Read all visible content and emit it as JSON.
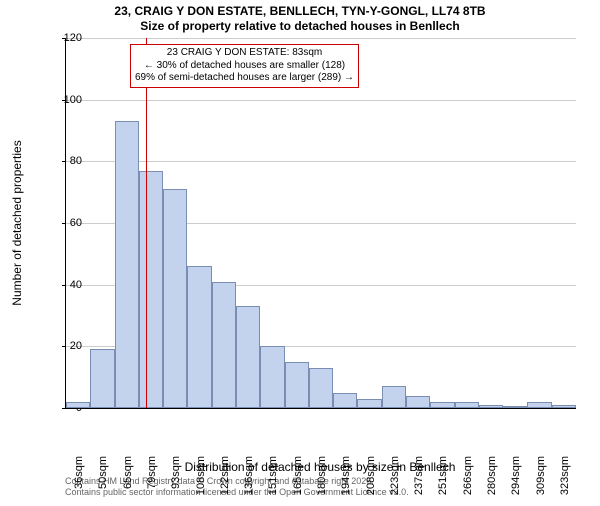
{
  "title_line1": "23, CRAIG Y DON ESTATE, BENLLECH, TYN-Y-GONGL, LL74 8TB",
  "title_line2": "Size of property relative to detached houses in Benllech",
  "y_label": "Number of detached properties",
  "x_label": "Distribution of detached houses by size in Benllech",
  "footer_line1": "Contains HM Land Registry data © Crown copyright and database right 2025.",
  "footer_line2": "Contains public sector information licensed under the Open Government Licence v3.0.",
  "annot_line1": "23 CRAIG Y DON ESTATE: 83sqm",
  "annot_line2": "← 30% of detached houses are smaller (128)",
  "annot_line3": "69% of semi-detached houses are larger (289) →",
  "chart": {
    "type": "histogram",
    "ylim": [
      0,
      120
    ],
    "ytick_step": 20,
    "yticks": [
      0,
      20,
      40,
      60,
      80,
      100,
      120
    ],
    "categories": [
      "36sqm",
      "50sqm",
      "65sqm",
      "79sqm",
      "93sqm",
      "108sqm",
      "122sqm",
      "136sqm",
      "151sqm",
      "165sqm",
      "180sqm",
      "194sqm",
      "208sqm",
      "223sqm",
      "237sqm",
      "251sqm",
      "266sqm",
      "280sqm",
      "294sqm",
      "309sqm",
      "323sqm"
    ],
    "values": [
      2,
      19,
      93,
      77,
      71,
      46,
      41,
      33,
      20,
      15,
      13,
      5,
      3,
      7,
      4,
      2,
      2,
      1,
      0,
      2,
      1
    ],
    "bar_fill": "#c4d3ed",
    "bar_stroke": "#7a8db3",
    "grid_color": "#cccccc",
    "background": "#ffffff",
    "ref_line_index": 3.3,
    "ref_line_color": "#cc0000",
    "annot_border": "#cc0000",
    "title_fontsize": 12,
    "label_fontsize": 12,
    "tick_fontsize": 11,
    "annot_fontsize": 10
  }
}
